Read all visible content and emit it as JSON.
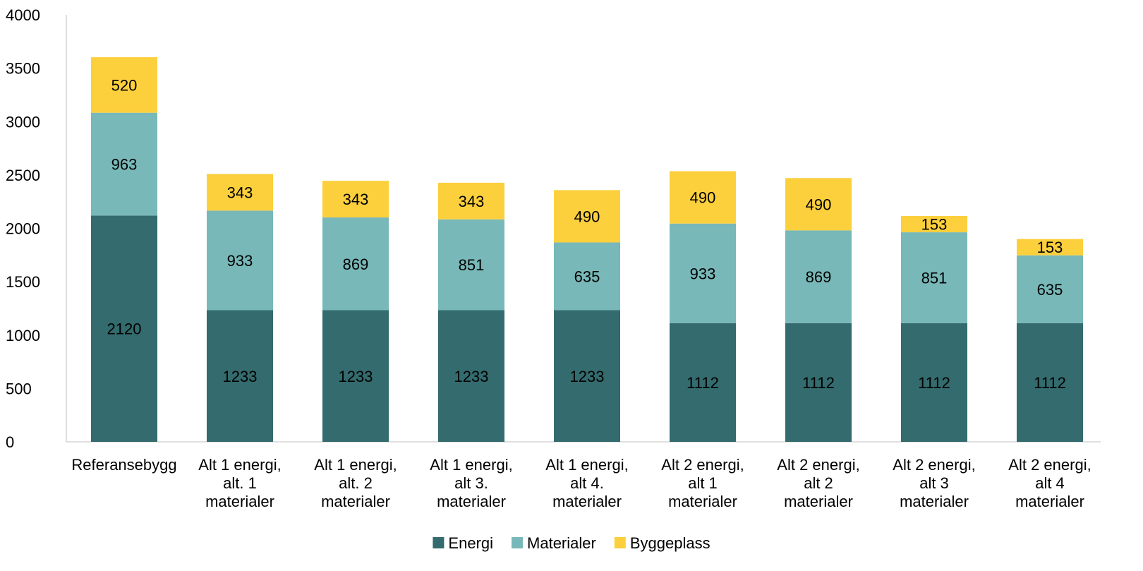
{
  "chart_data": {
    "type": "bar",
    "stacked": true,
    "title": "",
    "xlabel": "",
    "ylabel": "",
    "ylim": [
      0,
      4000
    ],
    "yticks": [
      0,
      500,
      1000,
      1500,
      2000,
      2500,
      3000,
      3500,
      4000
    ],
    "grid": false,
    "legend_position": "bottom",
    "categories": [
      [
        "Referansebygg"
      ],
      [
        "Alt 1 energi,",
        "alt. 1",
        "materialer"
      ],
      [
        "Alt 1 energi,",
        "alt. 2",
        "materialer"
      ],
      [
        "Alt 1 energi,",
        "alt 3.",
        "materialer"
      ],
      [
        "Alt 1 energi,",
        "alt 4.",
        "materialer"
      ],
      [
        "Alt 2 energi,",
        "alt 1",
        "materialer"
      ],
      [
        "Alt 2 energi,",
        "alt 2",
        "materialer"
      ],
      [
        "Alt 2 energi,",
        "alt 3",
        "materialer"
      ],
      [
        "Alt 2 energi,",
        "alt 4",
        "materialer"
      ]
    ],
    "series": [
      {
        "name": "Energi",
        "color": "#336b6e",
        "values": [
          2120,
          1233,
          1233,
          1233,
          1233,
          1112,
          1112,
          1112,
          1112
        ]
      },
      {
        "name": "Materialer",
        "color": "#78b8b8",
        "values": [
          963,
          933,
          869,
          851,
          635,
          933,
          869,
          851,
          635
        ]
      },
      {
        "name": "Byggeplass",
        "color": "#fcd03d",
        "values": [
          520,
          343,
          343,
          343,
          490,
          490,
          490,
          153,
          153
        ]
      }
    ]
  }
}
